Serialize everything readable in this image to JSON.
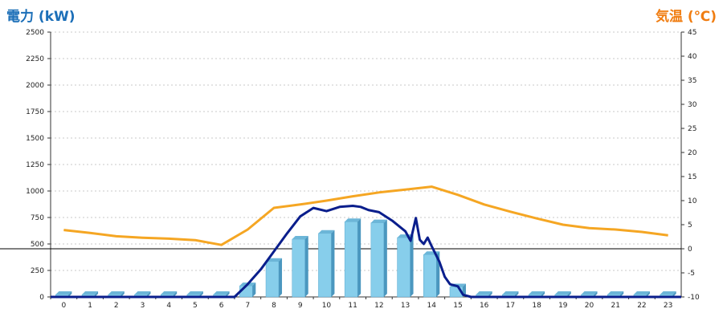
{
  "chart_data": {
    "type": "bar+line",
    "left_axis": {
      "label": "電力 (kW)",
      "min": 0,
      "max": 2500,
      "ticks": [
        0,
        250,
        500,
        750,
        1000,
        1250,
        1500,
        1750,
        2000,
        2250,
        2500
      ]
    },
    "right_axis": {
      "label": "気温 (℃)",
      "min": -10,
      "max": 45,
      "ticks": [
        -10,
        -5,
        0,
        5,
        10,
        15,
        20,
        25,
        30,
        35,
        40,
        45
      ]
    },
    "categories": [
      "0",
      "1",
      "2",
      "3",
      "4",
      "5",
      "6",
      "7",
      "8",
      "9",
      "10",
      "11",
      "12",
      "13",
      "14",
      "15",
      "16",
      "17",
      "18",
      "19",
      "20",
      "21",
      "22",
      "23"
    ],
    "bars": {
      "values": [
        0,
        0,
        0,
        0,
        0,
        0,
        0,
        105,
        335,
        545,
        600,
        710,
        700,
        560,
        400,
        95,
        0,
        0,
        0,
        0,
        0,
        0,
        0,
        0
      ],
      "color": "#87ceeb"
    },
    "temperature": {
      "x": [
        0,
        1,
        2,
        3,
        4,
        5,
        6,
        7,
        8,
        9,
        10,
        11,
        12,
        13,
        14,
        15,
        16,
        17,
        18,
        19,
        20,
        21,
        22,
        23
      ],
      "values": [
        3.9,
        3.3,
        2.6,
        2.3,
        2.1,
        1.8,
        0.8,
        4.0,
        8.5,
        9.2,
        10.0,
        10.9,
        11.7,
        12.3,
        12.9,
        11.2,
        9.2,
        7.7,
        6.3,
        5.0,
        4.3,
        4.0,
        3.5,
        2.8
      ],
      "color": "#f5a623"
    },
    "power_curve": {
      "x": [
        6.5,
        7,
        7.5,
        8,
        8.5,
        9,
        9.5,
        10,
        10.5,
        11,
        11.3,
        11.6,
        12,
        12.5,
        13,
        13.2,
        13.4,
        13.55,
        13.7,
        13.85,
        14,
        14.3,
        14.5,
        14.7,
        15,
        15.2,
        15.5
      ],
      "values": [
        0,
        120,
        260,
        430,
        600,
        760,
        840,
        810,
        850,
        860,
        850,
        820,
        800,
        720,
        620,
        530,
        745,
        540,
        500,
        560,
        480,
        330,
        190,
        120,
        100,
        20,
        0
      ],
      "color": "#0a1e8c"
    },
    "grid": true,
    "reference_line": {
      "axis": "right",
      "value": 0
    }
  }
}
